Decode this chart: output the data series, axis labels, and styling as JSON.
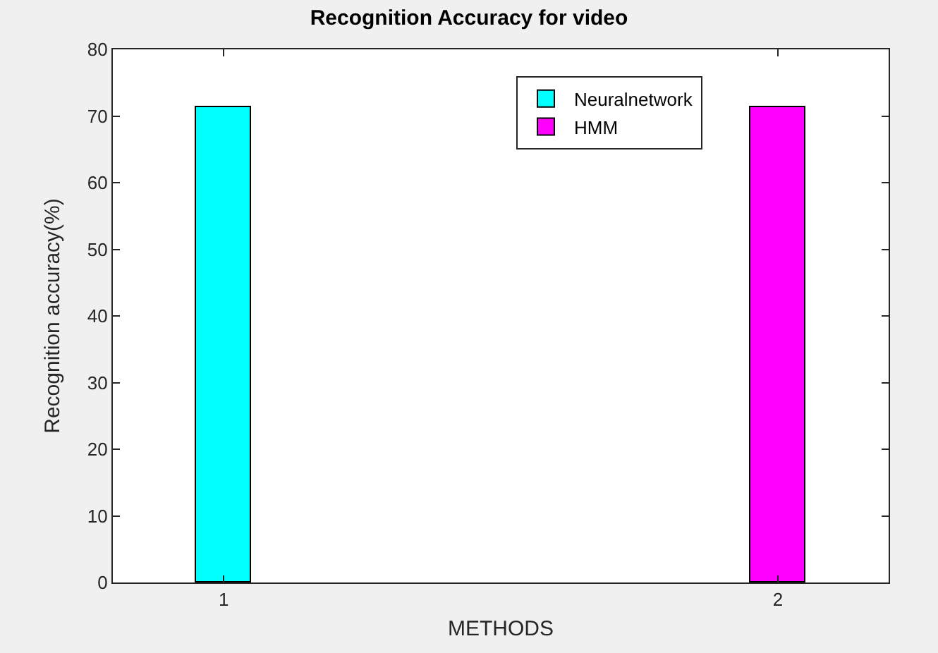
{
  "chart_data": {
    "type": "bar",
    "title": "Recognition Accuracy for video",
    "xlabel": "METHODS",
    "ylabel": "Recognition accuracy(%)",
    "series": [
      {
        "name": "Neuralnetwork",
        "color": "#00ffff",
        "x": [
          1
        ],
        "values": [
          71.4
        ]
      },
      {
        "name": "HMM",
        "color": "#ff00ff",
        "x": [
          2
        ],
        "values": [
          71.4
        ]
      }
    ],
    "xlim": [
      0.8,
      2.2
    ],
    "xticks": [
      1,
      2
    ],
    "ylim": [
      0,
      80
    ],
    "yticks": [
      0,
      10,
      20,
      30,
      40,
      50,
      60,
      70,
      80
    ],
    "legend": "top right"
  }
}
